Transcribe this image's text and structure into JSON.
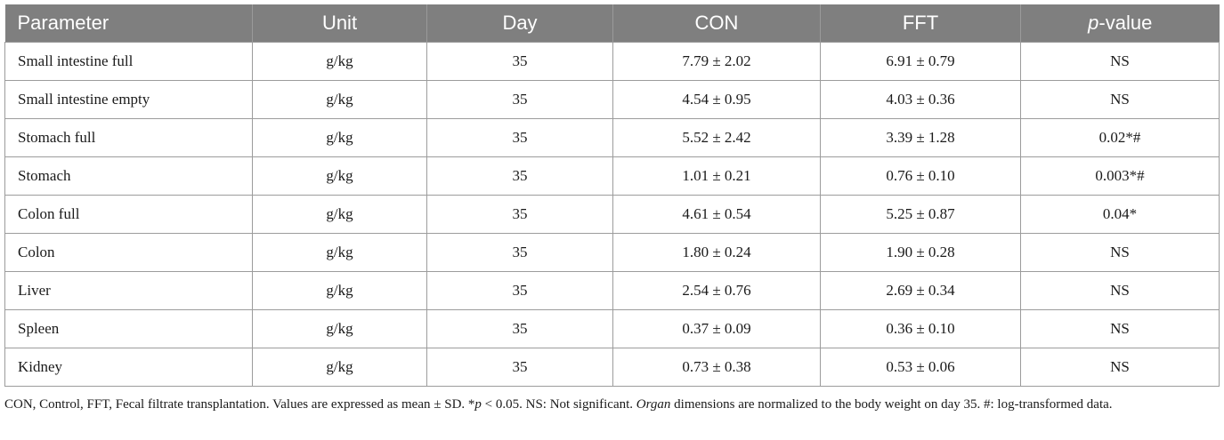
{
  "table": {
    "headers": {
      "parameter": "Parameter",
      "unit": "Unit",
      "day": "Day",
      "con": "CON",
      "fft": "FFT",
      "p_prefix": "p",
      "p_suffix": "-value"
    },
    "rows": [
      {
        "parameter": "Small intestine full",
        "unit": "g/kg",
        "day": "35",
        "con": "7.79 ± 2.02",
        "fft": "6.91 ± 0.79",
        "p": "NS"
      },
      {
        "parameter": "Small intestine empty",
        "unit": "g/kg",
        "day": "35",
        "con": "4.54 ± 0.95",
        "fft": "4.03 ± 0.36",
        "p": "NS"
      },
      {
        "parameter": "Stomach full",
        "unit": "g/kg",
        "day": "35",
        "con": "5.52 ± 2.42",
        "fft": "3.39 ± 1.28",
        "p": "0.02*#"
      },
      {
        "parameter": "Stomach",
        "unit": "g/kg",
        "day": "35",
        "con": "1.01 ± 0.21",
        "fft": "0.76 ± 0.10",
        "p": "0.003*#"
      },
      {
        "parameter": "Colon full",
        "unit": "g/kg",
        "day": "35",
        "con": "4.61 ± 0.54",
        "fft": "5.25 ± 0.87",
        "p": "0.04*"
      },
      {
        "parameter": "Colon",
        "unit": "g/kg",
        "day": "35",
        "con": "1.80 ± 0.24",
        "fft": "1.90 ± 0.28",
        "p": "NS"
      },
      {
        "parameter": "Liver",
        "unit": "g/kg",
        "day": "35",
        "con": "2.54 ± 0.76",
        "fft": "2.69 ± 0.34",
        "p": "NS"
      },
      {
        "parameter": "Spleen",
        "unit": "g/kg",
        "day": "35",
        "con": "0.37 ± 0.09",
        "fft": "0.36 ± 0.10",
        "p": "NS"
      },
      {
        "parameter": "Kidney",
        "unit": "g/kg",
        "day": "35",
        "con": "0.73 ± 0.38",
        "fft": "0.53 ± 0.06",
        "p": "NS"
      }
    ]
  },
  "footnote": {
    "part1": "CON, Control, FFT, Fecal filtrate transplantation. Values are expressed as mean ± SD. *",
    "p_symbol": "p",
    "part2": " < 0.05. NS: Not significant. ",
    "organ_word": "Organ",
    "part3": " dimensions are normalized to the body weight on day 35. #: log-transformed data."
  },
  "colors": {
    "header_bg": "#7f7f7f",
    "header_text": "#ffffff",
    "grid": "#9c9c9c"
  }
}
